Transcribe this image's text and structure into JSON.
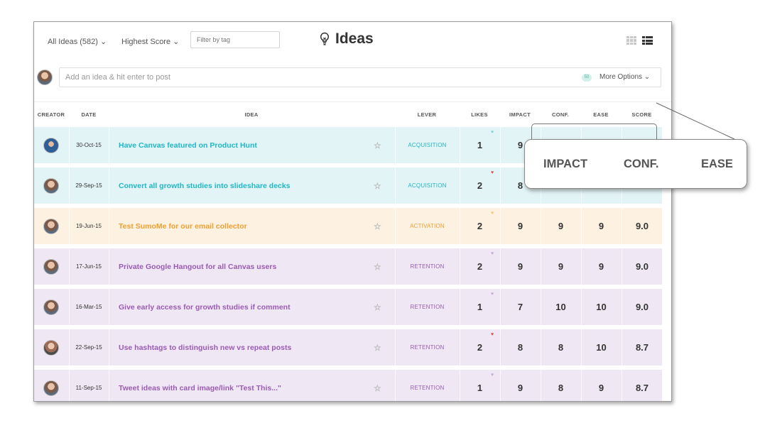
{
  "topbar": {
    "all_ideas": "All Ideas (582) ⌄",
    "sort": "Highest Score ⌄",
    "filter_placeholder": "Filter by tag",
    "title": "Ideas",
    "title_icon": "lightbulb-icon",
    "view_icons": [
      "grid-icon",
      "list-icon"
    ]
  },
  "postbar": {
    "placeholder": "Add an idea & hit enter to post",
    "count": "50",
    "more_options": "More Options ⌄"
  },
  "columns": [
    "CREATOR",
    "DATE",
    "IDEA",
    "LEVER",
    "LIKES",
    "IMPACT",
    "CONF.",
    "EASE",
    "SCORE"
  ],
  "colors": {
    "acquisition_bg": "#e3f4f6",
    "acquisition_text": "#1fb7c6",
    "activation_bg": "#fdf1e2",
    "activation_text": "#f0a031",
    "retention_bg": "#efe7f3",
    "retention_text": "#9a5bb5"
  },
  "rows": [
    {
      "date": "30-Oct-15",
      "idea": "Have Canvas featured on Product Hunt",
      "lever": "ACQUISITION",
      "likes": "1",
      "heart_color": "#7fd0da",
      "impact": "9",
      "conf": "",
      "ease": "",
      "score": "",
      "avatar": "blue"
    },
    {
      "date": "29-Sep-15",
      "idea": "Convert all growth studies into slideshare decks",
      "lever": "ACQUISITION",
      "likes": "2",
      "heart_color": "#e04b4b",
      "impact": "8",
      "conf": "",
      "ease": "",
      "score": "",
      "avatar": "default"
    },
    {
      "date": "19-Jun-15",
      "idea": "Test SumoMe for our email collector",
      "lever": "ACTIVATION",
      "likes": "2",
      "heart_color": "#f5c57a",
      "impact": "9",
      "conf": "9",
      "ease": "9",
      "score": "9.0",
      "avatar": "default"
    },
    {
      "date": "17-Jun-15",
      "idea": "Private Google Hangout for all Canvas users",
      "lever": "RETENTION",
      "likes": "2",
      "heart_color": "#c7a6d9",
      "impact": "9",
      "conf": "9",
      "ease": "9",
      "score": "9.0",
      "avatar": "default"
    },
    {
      "date": "16-Mar-15",
      "idea": "Give early access for growth studies if comment",
      "lever": "RETENTION",
      "likes": "1",
      "heart_color": "#c7a6d9",
      "impact": "7",
      "conf": "10",
      "ease": "10",
      "score": "9.0",
      "avatar": "default"
    },
    {
      "date": "22-Sep-15",
      "idea": "Use hashtags to distinguish new vs repeat posts",
      "lever": "RETENTION",
      "likes": "2",
      "heart_color": "#e04b4b",
      "impact": "8",
      "conf": "8",
      "ease": "10",
      "score": "8.7",
      "avatar": "alt"
    },
    {
      "date": "11-Sep-15",
      "idea": "Tweet ideas with card image/link \"Test This...\"",
      "lever": "RETENTION",
      "likes": "1",
      "heart_color": "#c7a6d9",
      "impact": "9",
      "conf": "8",
      "ease": "9",
      "score": "8.7",
      "avatar": "default"
    }
  ],
  "callout": {
    "labels": [
      "IMPACT",
      "CONF.",
      "EASE"
    ]
  }
}
